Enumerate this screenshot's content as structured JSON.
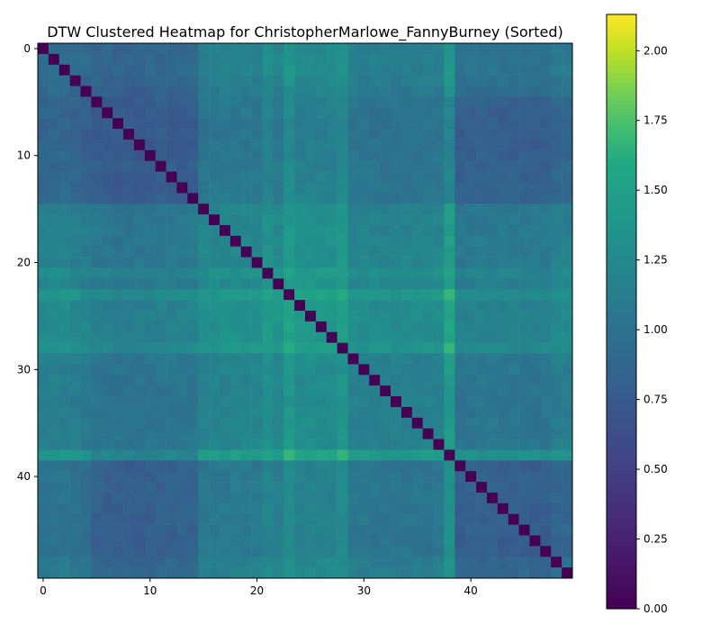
{
  "chart_data": {
    "type": "heatmap",
    "title": "DTW Clustered Heatmap for ChristopherMarlowe_FannyBurney (Sorted)",
    "xlabel": "",
    "ylabel": "",
    "n": 50,
    "x_ticks": [
      0,
      10,
      20,
      30,
      40
    ],
    "y_ticks": [
      0,
      10,
      20,
      30,
      40
    ],
    "colorbar": {
      "range": [
        0.0,
        2.13
      ],
      "ticks": [
        "0.00",
        "0.25",
        "0.50",
        "0.75",
        "1.00",
        "1.25",
        "1.50",
        "1.75",
        "2.00"
      ],
      "colormap": "viridis"
    },
    "cluster_level": [
      1.08,
      1.14,
      1.12,
      1.05,
      0.98,
      0.92,
      0.88,
      0.85,
      0.85,
      0.86,
      0.88,
      0.9,
      0.92,
      0.92,
      0.94,
      1.18,
      1.2,
      1.2,
      1.22,
      1.22,
      1.24,
      1.45,
      1.3,
      1.62,
      1.4,
      1.42,
      1.4,
      1.42,
      1.55,
      1.18,
      1.16,
      1.14,
      1.12,
      1.12,
      1.14,
      1.14,
      1.16,
      1.18,
      1.7,
      0.9,
      0.92,
      0.95,
      0.95,
      0.92,
      0.92,
      0.92,
      0.9,
      0.92,
      1.05,
      1.08
    ],
    "note_values_estimated_from_colors": true
  }
}
